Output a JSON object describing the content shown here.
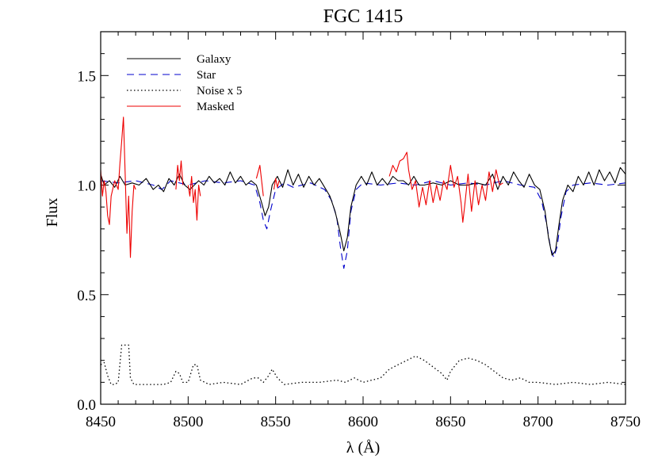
{
  "chart_data": {
    "type": "line",
    "title": "FGC 1415",
    "xlabel": "λ (Å)",
    "ylabel": "Flux",
    "xlim": [
      8450,
      8750
    ],
    "ylim": [
      0.0,
      1.7
    ],
    "x_ticks": [
      8450,
      8500,
      8550,
      8600,
      8650,
      8700,
      8750
    ],
    "x_tick_labels": [
      "8450",
      "8500",
      "8550",
      "8600",
      "8650",
      "8700",
      "8750"
    ],
    "y_ticks": [
      0.0,
      0.5,
      1.0,
      1.5
    ],
    "y_tick_labels": [
      "0.0",
      "0.5",
      "1.0",
      "1.5"
    ],
    "legend_position": "top-left",
    "series": [
      {
        "name": "Galaxy",
        "color": "#000000",
        "style": "solid",
        "points": [
          [
            8450,
            1.05
          ],
          [
            8452,
            1.0
          ],
          [
            8455,
            1.02
          ],
          [
            8458,
            0.99
          ],
          [
            8461,
            1.04
          ],
          [
            8464,
            1.0
          ],
          [
            8468,
            1.01
          ],
          [
            8472,
            1.0
          ],
          [
            8476,
            1.03
          ],
          [
            8480,
            0.98
          ],
          [
            8483,
            1.0
          ],
          [
            8486,
            0.97
          ],
          [
            8489,
            1.03
          ],
          [
            8492,
            1.0
          ],
          [
            8495,
            1.05
          ],
          [
            8498,
            1.0
          ],
          [
            8501,
            0.98
          ],
          [
            8506,
            1.02
          ],
          [
            8509,
            1.0
          ],
          [
            8512,
            1.04
          ],
          [
            8515,
            1.01
          ],
          [
            8518,
            1.03
          ],
          [
            8521,
            1.0
          ],
          [
            8524,
            1.06
          ],
          [
            8527,
            1.01
          ],
          [
            8530,
            1.04
          ],
          [
            8533,
            1.0
          ],
          [
            8536,
            1.02
          ],
          [
            8539,
            1.0
          ],
          [
            8542,
            0.92
          ],
          [
            8544,
            0.86
          ],
          [
            8546,
            0.9
          ],
          [
            8548,
            1.0
          ],
          [
            8551,
            1.04
          ],
          [
            8554,
            0.99
          ],
          [
            8557,
            1.07
          ],
          [
            8560,
            1.0
          ],
          [
            8563,
            1.05
          ],
          [
            8566,
            0.99
          ],
          [
            8569,
            1.04
          ],
          [
            8572,
            1.0
          ],
          [
            8575,
            1.03
          ],
          [
            8578,
            0.99
          ],
          [
            8581,
            0.95
          ],
          [
            8584,
            0.88
          ],
          [
            8587,
            0.78
          ],
          [
            8589,
            0.7
          ],
          [
            8591,
            0.76
          ],
          [
            8593,
            0.9
          ],
          [
            8596,
            1.0
          ],
          [
            8599,
            1.04
          ],
          [
            8602,
            1.0
          ],
          [
            8605,
            1.06
          ],
          [
            8608,
            1.0
          ],
          [
            8611,
            1.03
          ],
          [
            8614,
            1.0
          ],
          [
            8617,
            1.04
          ],
          [
            8620,
            1.02
          ],
          [
            8623,
            1.02
          ],
          [
            8626,
            1.0
          ],
          [
            8629,
            1.04
          ],
          [
            8632,
            1.0
          ],
          [
            8635,
            1.0
          ],
          [
            8640,
            1.01
          ],
          [
            8645,
            1.0
          ],
          [
            8650,
            1.02
          ],
          [
            8655,
            1.0
          ],
          [
            8660,
            1.0
          ],
          [
            8665,
            1.01
          ],
          [
            8670,
            1.0
          ],
          [
            8674,
            1.05
          ],
          [
            8677,
            0.98
          ],
          [
            8680,
            1.04
          ],
          [
            8683,
            1.0
          ],
          [
            8686,
            1.06
          ],
          [
            8689,
            1.02
          ],
          [
            8692,
            0.99
          ],
          [
            8695,
            1.05
          ],
          [
            8698,
            1.0
          ],
          [
            8701,
            0.98
          ],
          [
            8704,
            0.88
          ],
          [
            8706,
            0.76
          ],
          [
            8708,
            0.68
          ],
          [
            8710,
            0.7
          ],
          [
            8712,
            0.82
          ],
          [
            8714,
            0.93
          ],
          [
            8717,
            1.0
          ],
          [
            8720,
            0.97
          ],
          [
            8723,
            1.04
          ],
          [
            8726,
            1.0
          ],
          [
            8729,
            1.06
          ],
          [
            8732,
            1.0
          ],
          [
            8735,
            1.07
          ],
          [
            8738,
            1.02
          ],
          [
            8741,
            1.06
          ],
          [
            8744,
            1.01
          ],
          [
            8747,
            1.08
          ],
          [
            8750,
            1.05
          ]
        ]
      },
      {
        "name": "Star",
        "color": "#0000cc",
        "style": "dashed",
        "points": [
          [
            8450,
            1.02
          ],
          [
            8460,
            1.01
          ],
          [
            8470,
            1.02
          ],
          [
            8480,
            1.0
          ],
          [
            8485,
            0.98
          ],
          [
            8490,
            1.02
          ],
          [
            8500,
            1.0
          ],
          [
            8510,
            1.02
          ],
          [
            8520,
            1.01
          ],
          [
            8530,
            1.02
          ],
          [
            8538,
            1.0
          ],
          [
            8541,
            0.92
          ],
          [
            8543,
            0.84
          ],
          [
            8545,
            0.8
          ],
          [
            8547,
            0.88
          ],
          [
            8550,
            0.98
          ],
          [
            8555,
            1.01
          ],
          [
            8560,
            0.99
          ],
          [
            8570,
            1.01
          ],
          [
            8578,
            0.98
          ],
          [
            8582,
            0.93
          ],
          [
            8585,
            0.85
          ],
          [
            8587,
            0.72
          ],
          [
            8589,
            0.62
          ],
          [
            8591,
            0.7
          ],
          [
            8593,
            0.88
          ],
          [
            8596,
            0.98
          ],
          [
            8600,
            1.01
          ],
          [
            8610,
            1.0
          ],
          [
            8620,
            1.01
          ],
          [
            8630,
            1.0
          ],
          [
            8640,
            1.02
          ],
          [
            8650,
            1.0
          ],
          [
            8660,
            1.01
          ],
          [
            8670,
            1.0
          ],
          [
            8680,
            1.02
          ],
          [
            8690,
            1.0
          ],
          [
            8698,
            0.99
          ],
          [
            8702,
            0.93
          ],
          [
            8705,
            0.82
          ],
          [
            8707,
            0.72
          ],
          [
            8709,
            0.67
          ],
          [
            8711,
            0.72
          ],
          [
            8713,
            0.85
          ],
          [
            8716,
            0.97
          ],
          [
            8720,
            1.0
          ],
          [
            8730,
            1.01
          ],
          [
            8740,
            1.0
          ],
          [
            8750,
            1.01
          ]
        ]
      },
      {
        "name": "Noise x 5",
        "color": "#000000",
        "style": "dotted",
        "points": [
          [
            8450,
            0.18
          ],
          [
            8452,
            0.19
          ],
          [
            8454,
            0.13
          ],
          [
            8456,
            0.09
          ],
          [
            8458,
            0.09
          ],
          [
            8460,
            0.1
          ],
          [
            8462,
            0.27
          ],
          [
            8464,
            0.27
          ],
          [
            8466,
            0.27
          ],
          [
            8467,
            0.12
          ],
          [
            8469,
            0.09
          ],
          [
            8475,
            0.09
          ],
          [
            8480,
            0.09
          ],
          [
            8486,
            0.09
          ],
          [
            8490,
            0.1
          ],
          [
            8493,
            0.15
          ],
          [
            8495,
            0.14
          ],
          [
            8497,
            0.1
          ],
          [
            8500,
            0.1
          ],
          [
            8503,
            0.18
          ],
          [
            8505,
            0.18
          ],
          [
            8507,
            0.11
          ],
          [
            8512,
            0.09
          ],
          [
            8520,
            0.1
          ],
          [
            8530,
            0.09
          ],
          [
            8537,
            0.12
          ],
          [
            8540,
            0.12
          ],
          [
            8543,
            0.1
          ],
          [
            8546,
            0.13
          ],
          [
            8548,
            0.16
          ],
          [
            8551,
            0.12
          ],
          [
            8555,
            0.09
          ],
          [
            8565,
            0.1
          ],
          [
            8575,
            0.1
          ],
          [
            8585,
            0.11
          ],
          [
            8590,
            0.1
          ],
          [
            8595,
            0.12
          ],
          [
            8600,
            0.1
          ],
          [
            8605,
            0.11
          ],
          [
            8610,
            0.12
          ],
          [
            8615,
            0.16
          ],
          [
            8620,
            0.18
          ],
          [
            8625,
            0.2
          ],
          [
            8630,
            0.22
          ],
          [
            8635,
            0.2
          ],
          [
            8640,
            0.17
          ],
          [
            8645,
            0.14
          ],
          [
            8648,
            0.11
          ],
          [
            8650,
            0.15
          ],
          [
            8655,
            0.2
          ],
          [
            8660,
            0.21
          ],
          [
            8665,
            0.2
          ],
          [
            8670,
            0.18
          ],
          [
            8675,
            0.15
          ],
          [
            8680,
            0.12
          ],
          [
            8685,
            0.11
          ],
          [
            8690,
            0.12
          ],
          [
            8695,
            0.1
          ],
          [
            8700,
            0.1
          ],
          [
            8710,
            0.09
          ],
          [
            8720,
            0.1
          ],
          [
            8730,
            0.09
          ],
          [
            8740,
            0.1
          ],
          [
            8750,
            0.09
          ]
        ]
      },
      {
        "name": "Masked",
        "color": "#ee0000",
        "style": "solid",
        "segments": [
          [
            [
              8450,
              1.07
            ],
            [
              8451,
              0.95
            ],
            [
              8452,
              1.02
            ],
            [
              8453,
              0.97
            ],
            [
              8454,
              0.86
            ],
            [
              8455,
              0.82
            ],
            [
              8456,
              0.95
            ],
            [
              8458,
              1.02
            ],
            [
              8460,
              0.98
            ],
            [
              8461,
              1.1
            ],
            [
              8462,
              1.2
            ],
            [
              8463,
              1.31
            ],
            [
              8464,
              1.05
            ],
            [
              8465,
              0.78
            ],
            [
              8466,
              0.95
            ],
            [
              8467,
              0.67
            ],
            [
              8468,
              0.88
            ],
            [
              8469,
              1.0
            ],
            [
              8470,
              0.98
            ]
          ],
          [
            [
              8493,
              0.98
            ],
            [
              8494,
              1.09
            ],
            [
              8495,
              1.02
            ],
            [
              8496,
              1.11
            ],
            [
              8497,
              1.0
            ]
          ],
          [
            [
              8500,
              1.0
            ],
            [
              8501,
              0.95
            ],
            [
              8502,
              1.04
            ],
            [
              8503,
              0.92
            ],
            [
              8504,
              0.98
            ],
            [
              8505,
              0.84
            ],
            [
              8506,
              1.0
            ],
            [
              8507,
              0.95
            ]
          ],
          [
            [
              8539,
              1.03
            ],
            [
              8541,
              1.09
            ],
            [
              8543,
              0.95
            ]
          ],
          [
            [
              8549,
              0.98
            ],
            [
              8550,
              1.03
            ],
            [
              8551,
              0.99
            ],
            [
              8552,
              1.02
            ]
          ],
          [
            [
              8615,
              1.04
            ],
            [
              8617,
              1.09
            ],
            [
              8619,
              1.06
            ],
            [
              8621,
              1.11
            ],
            [
              8623,
              1.12
            ],
            [
              8625,
              1.15
            ],
            [
              8626,
              1.07
            ],
            [
              8628,
              0.98
            ],
            [
              8630,
              1.02
            ],
            [
              8632,
              0.9
            ],
            [
              8634,
              0.99
            ],
            [
              8636,
              0.91
            ],
            [
              8638,
              1.02
            ],
            [
              8640,
              0.92
            ],
            [
              8642,
              1.0
            ],
            [
              8644,
              0.93
            ],
            [
              8646,
              1.02
            ],
            [
              8648,
              0.98
            ],
            [
              8650,
              1.09
            ],
            [
              8652,
              0.99
            ],
            [
              8654,
              1.04
            ],
            [
              8656,
              0.92
            ],
            [
              8657,
              0.83
            ],
            [
              8658,
              0.9
            ],
            [
              8660,
              1.05
            ],
            [
              8662,
              0.88
            ],
            [
              8664,
              1.02
            ],
            [
              8666,
              0.91
            ],
            [
              8668,
              1.0
            ],
            [
              8670,
              0.93
            ],
            [
              8672,
              1.06
            ],
            [
              8674,
              0.97
            ],
            [
              8676,
              1.07
            ],
            [
              8678,
              1.0
            ],
            [
              8680,
              1.01
            ]
          ]
        ]
      }
    ]
  }
}
